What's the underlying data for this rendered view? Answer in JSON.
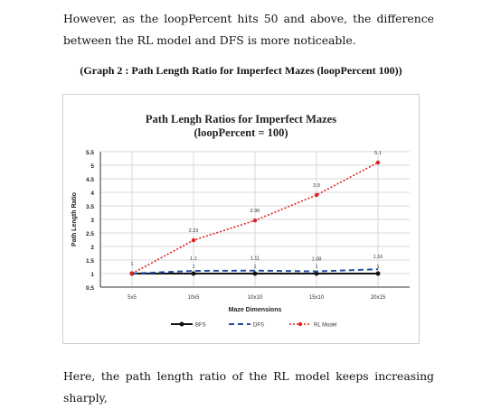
{
  "document": {
    "paragraph_top": "However, as the loopPercent hits 50 and above, the difference between the RL model and DFS is more noticeable.",
    "caption": "(Graph 2 : Path Length Ratio for Imperfect Mazes (loopPercent 100))",
    "paragraph_bottom": "Here, the path length ratio of the RL model keeps increasing sharply,"
  },
  "chart_data": {
    "type": "line",
    "title_line1": "Path Lengh Ratios for Imperfect Mazes",
    "title_line2": "(loopPercent = 100)",
    "xlabel": "Maze Dimensions",
    "ylabel": "Path Length Ratio",
    "categories": [
      "5x5",
      "10x5",
      "10x10",
      "15x10",
      "20x15"
    ],
    "ylim": [
      0.5,
      5.5
    ],
    "yticks": [
      "0.5",
      "1",
      "1.5",
      "2",
      "2.5",
      "3",
      "3.5",
      "4",
      "4.5",
      "5",
      "5.5"
    ],
    "grid": true,
    "legend_position": "bottom",
    "series": [
      {
        "name": "BFS",
        "values": [
          1,
          1,
          1,
          1,
          1
        ],
        "color": "#111111",
        "labels": [
          "",
          "1",
          "1",
          "1",
          "1"
        ]
      },
      {
        "name": "DFS",
        "values": [
          1,
          1.1,
          1.11,
          1.08,
          1.16
        ],
        "color": "#1f4e9e",
        "labels": [
          "",
          "1.1",
          "1.11",
          "1.08",
          "1.16"
        ]
      },
      {
        "name": "RL Model",
        "values": [
          1,
          2.23,
          2.96,
          3.9,
          5.1
        ],
        "color": "#e02020",
        "labels": [
          "1",
          "2.23",
          "2.96",
          "3.9",
          "5.1"
        ]
      }
    ]
  }
}
